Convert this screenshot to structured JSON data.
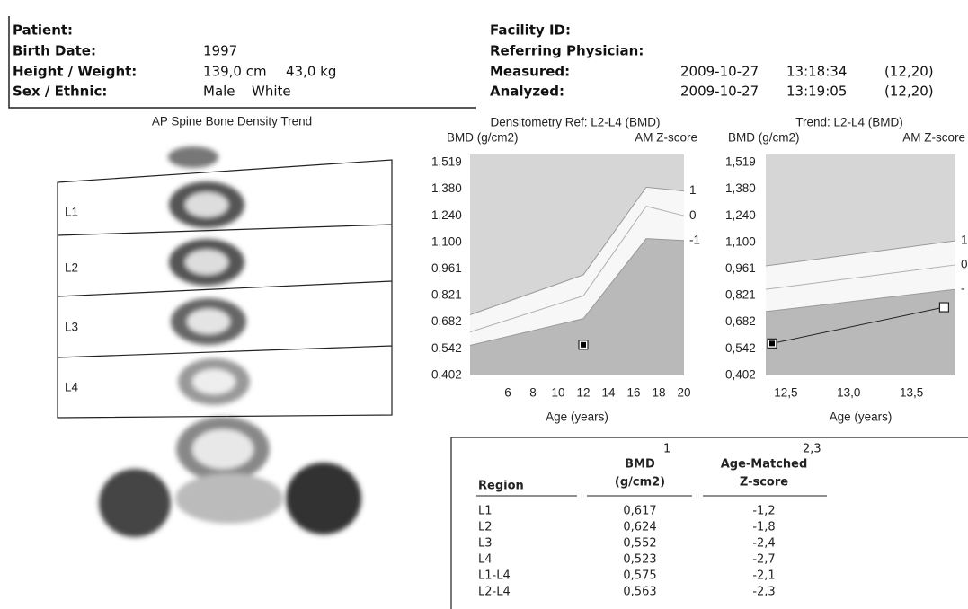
{
  "header": {
    "patient": {
      "label": "Patient:"
    },
    "birth_date": {
      "label": "Birth Date:",
      "value": "1997"
    },
    "height_weight": {
      "label": "Height / Weight:",
      "values": [
        "139,0 cm",
        "43,0 kg"
      ]
    },
    "sex_ethnic": {
      "label": "Sex / Ethnic:",
      "values": [
        "Male",
        "White"
      ]
    },
    "facility": {
      "label": "Facility ID:"
    },
    "referring": {
      "label": "Referring Physician:"
    },
    "measured": {
      "label": "Measured:",
      "values": [
        "2009-10-27",
        "13:18:34",
        "(12,20)"
      ]
    },
    "analyzed": {
      "label": "Analyzed:",
      "values": [
        "2009-10-27",
        "13:19:05",
        "(12,20)"
      ]
    }
  },
  "spine": {
    "title": "AP Spine Bone Density Trend",
    "labels": [
      "L1",
      "L2",
      "L3",
      "L4"
    ]
  },
  "chart_data": [
    {
      "type": "line",
      "title": "Densitometry Ref: L2-L4 (BMD)",
      "y_label": "BMD (g/cm2)",
      "y2_label": "AM Z-score",
      "x_label": "Age (years)",
      "xlim": [
        3,
        20
      ],
      "xticks": [
        6,
        8,
        10,
        12,
        14,
        16,
        18,
        20
      ],
      "ylim": [
        0.402,
        1.519
      ],
      "yticks": [
        {
          "value": 0.402,
          "label": "0,402"
        },
        {
          "value": 0.542,
          "label": "0,542"
        },
        {
          "value": 0.682,
          "label": "0,682"
        },
        {
          "value": 0.821,
          "label": "0,821"
        },
        {
          "value": 0.961,
          "label": "0,961"
        },
        {
          "value": 1.1,
          "label": "1,100"
        },
        {
          "value": 1.24,
          "label": "1,240"
        },
        {
          "value": 1.38,
          "label": "1,380"
        },
        {
          "value": 1.519,
          "label": "1,519"
        }
      ],
      "x": [
        3,
        12,
        17,
        20
      ],
      "series": [
        {
          "name": "1",
          "color": "#9a9a9a",
          "values": [
            0.72,
            0.93,
            1.39,
            1.37
          ]
        },
        {
          "name": "0",
          "color": "#b0b0b0",
          "values": [
            0.63,
            0.82,
            1.29,
            1.24
          ]
        },
        {
          "name": "-1",
          "color": "#9a9a9a",
          "values": [
            0.56,
            0.7,
            1.12,
            1.11
          ]
        }
      ],
      "patient": {
        "x": [
          12
        ],
        "values": [
          0.563
        ],
        "color": "#000000"
      }
    },
    {
      "type": "line",
      "title": "Trend: L2-L4 (BMD)",
      "y_label": "BMD (g/cm2)",
      "y2_label": "AM Z-score",
      "x_label": "Age (years)",
      "xlim": [
        12.34,
        13.85
      ],
      "xticks": [
        {
          "value": 12.5,
          "label": "12,5"
        },
        {
          "value": 13.0,
          "label": "13,0"
        },
        {
          "value": 13.5,
          "label": "13,5"
        }
      ],
      "ylim": [
        0.402,
        1.519
      ],
      "yticks": [
        {
          "value": 0.402,
          "label": "0,402"
        },
        {
          "value": 0.542,
          "label": "0,542"
        },
        {
          "value": 0.682,
          "label": "0,682"
        },
        {
          "value": 0.821,
          "label": "0,821"
        },
        {
          "value": 0.961,
          "label": "0,961"
        },
        {
          "value": 1.1,
          "label": "1,100"
        },
        {
          "value": 1.24,
          "label": "1,240"
        },
        {
          "value": 1.38,
          "label": "1,380"
        },
        {
          "value": 1.519,
          "label": "1,519"
        }
      ],
      "x": [
        12.34,
        13.85
      ],
      "series": [
        {
          "name": "1",
          "color": "#9a9a9a",
          "values": [
            0.977,
            1.109
          ]
        },
        {
          "name": "0",
          "color": "#b0b0b0",
          "values": [
            0.854,
            0.982
          ]
        },
        {
          "name": "-",
          "color": "#9a9a9a",
          "values": [
            0.737,
            0.854
          ]
        }
      ],
      "patient": {
        "x": [
          12.39,
          13.76
        ],
        "values": [
          0.57,
          0.76
        ],
        "color": "#000000"
      }
    }
  ],
  "table": {
    "headers": {
      "region": "Region",
      "bmd": "BMD",
      "bmd_note": "1",
      "bmd_unit": "(g/cm2)",
      "z": "Age-Matched",
      "z_note": "2,3",
      "z_unit": "Z-score"
    },
    "rows": [
      [
        "L1",
        "0,617",
        "-1,2"
      ],
      [
        "L2",
        "0,624",
        "-1,8"
      ],
      [
        "L3",
        "0,552",
        "-2,4"
      ],
      [
        "L4",
        "0,523",
        "-2,7"
      ],
      [
        "L1-L4",
        "0,575",
        "-2,1"
      ],
      [
        "L2-L4",
        "0,563",
        "-2,3"
      ]
    ]
  }
}
